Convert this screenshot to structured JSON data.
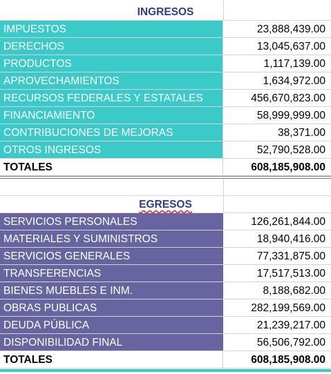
{
  "ingresos": {
    "title": "INGRESOS",
    "rows": [
      [
        "IMPUESTOS",
        "23,888,439.00"
      ],
      [
        "DERECHOS",
        "13,045,637.00"
      ],
      [
        "PRODUCTOS",
        "1,117,139.00"
      ],
      [
        "APROVECHAMIENTOS",
        "1,634,972.00"
      ],
      [
        "RECURSOS FEDERALES Y ESTATALES",
        "456,670,823.00"
      ],
      [
        "FINANCIAMIENTO",
        "58,999,999.00"
      ],
      [
        "CONTRIBUCIONES DE MEJORAS",
        "38,371.00"
      ],
      [
        "OTROS INGRESOS",
        "52,790,528.00"
      ]
    ],
    "total": [
      "TOTALES",
      "608,185,908.00"
    ]
  },
  "egresos": {
    "title": "EGRESOS",
    "rows": [
      [
        "SERVICIOS PERSONALES",
        "126,261,844.00"
      ],
      [
        "MATERIALES Y SUMINISTROS",
        "18,940,416.00"
      ],
      [
        "SERVICIOS GENERALES",
        "77,331,875.00"
      ],
      [
        "TRANSFERENCIAS",
        "17,517,513.00"
      ],
      [
        "BIENES MUEBLES E INM.",
        "8,188,682.00"
      ],
      [
        "OBRAS PUBLICAS",
        "282,199,569.00"
      ],
      [
        "DEUDA PÚBLICA",
        "21,239,217.00"
      ],
      [
        "DISPONIBILIDAD FINAL",
        "56,506,792.00"
      ]
    ],
    "total": [
      "TOTALES",
      "608,185,908.00"
    ]
  }
}
